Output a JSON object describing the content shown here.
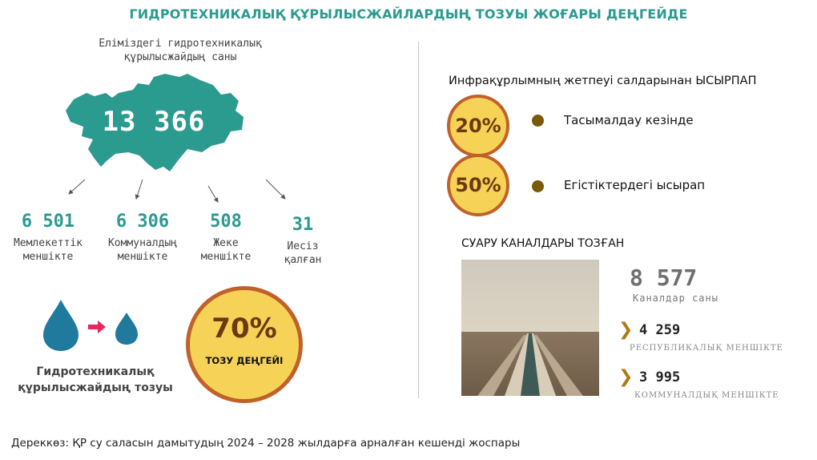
{
  "title": "ГИДРОТЕХНИКАЛЫҚ ҚҰРЫЛЫСЖАЙЛАРДЫҢ ТОЗУЫ ЖОҒАРЫ ДЕҢГЕЙДЕ",
  "map": {
    "caption_line1": "Еліміздегі гидротехникалық",
    "caption_line2": "құрылысжайдың саны",
    "total": "13 366",
    "color": "#2b9a8f"
  },
  "ownership": [
    {
      "value": "6 501",
      "label_line1": "Мемлекеттік",
      "label_line2": "меншікте"
    },
    {
      "value": "6 306",
      "label_line1": "Коммуналдың",
      "label_line2": "меншікте"
    },
    {
      "value": "508",
      "label_line1": "Жеке",
      "label_line2": "меншікте"
    },
    {
      "value": "31",
      "label_line1": "Иесіз",
      "label_line2": "қалған"
    }
  ],
  "wear": {
    "label_line1": "Гидротехникалық",
    "label_line2": "құрылысжайдың тозуы",
    "percent": "70%",
    "percent_label": "ТОЗУ ДЕҢГЕЙІ",
    "drop_color": "#1f7a9e",
    "arrow_color": "#e8265e"
  },
  "losses": {
    "heading": "Инфрақұрлымның жетпеуі салдарынан ЫСЫРПАП",
    "items": [
      {
        "percent": "20%",
        "label": "Тасымалдау кезінде"
      },
      {
        "percent": "50%",
        "label": "Егістіктердегі ысырап"
      }
    ],
    "circle_fill": "#f6d256",
    "circle_border": "#c0612a"
  },
  "canals": {
    "heading": "СУАРУ КАНАЛДАРЫ ТОЗҒАН",
    "total": "8 577",
    "total_label": "Каналдар саны",
    "items": [
      {
        "value": "4 259",
        "label": "РЕСПУБЛИКАЛЫҚ МЕНШІКТЕ"
      },
      {
        "value": "3 995",
        "label": "КОММУНАЛДЫҚ МЕНШІКТЕ"
      }
    ],
    "chevron": "❯",
    "image": "irrigation-canal-photo"
  },
  "source": "Дереккөз: ҚР су саласын дамытудың 2024 – 2028 жылдарға арналған кешенді жоспары"
}
